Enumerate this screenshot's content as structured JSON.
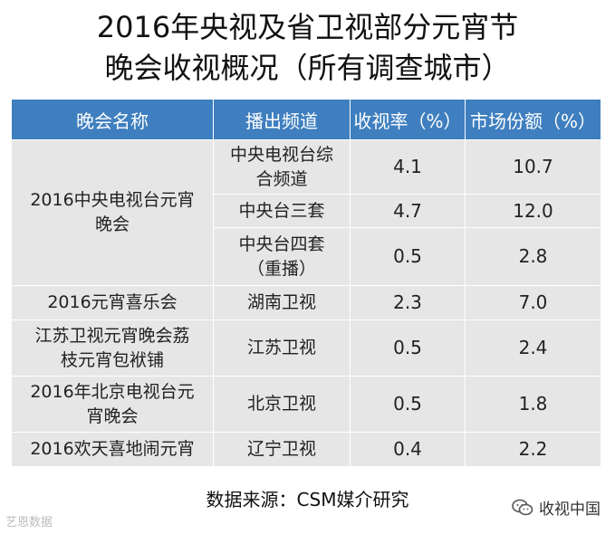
{
  "title": {
    "line1": "2016年央视及省卫视部分元宵节",
    "line2": "晚会收视概况（所有调查城市）"
  },
  "chart_data": {
    "type": "table",
    "columns": [
      "晚会名称",
      "播出频道",
      "收视率（%）",
      "市场份额（%）"
    ],
    "rows": [
      {
        "program": "2016中央电视台元宵晚会",
        "channel": "中央电视台综合频道",
        "rating": "4.1",
        "share": "10.7"
      },
      {
        "program": "2016中央电视台元宵晚会",
        "channel": "中央台三套",
        "rating": "4.7",
        "share": "12.0"
      },
      {
        "program": "2016中央电视台元宵晚会",
        "channel": "中央台四套（重播）",
        "rating": "0.5",
        "share": "2.8"
      },
      {
        "program": "2016元宵喜乐会",
        "channel": "湖南卫视",
        "rating": "2.3",
        "share": "7.0"
      },
      {
        "program": "江苏卫视元宵晚会荔枝元宵包袱铺",
        "channel": "江苏卫视",
        "rating": "0.5",
        "share": "2.4"
      },
      {
        "program": "2016年北京电视台元宵晚会",
        "channel": "北京卫视",
        "rating": "0.5",
        "share": "1.8"
      },
      {
        "program": "2016欢天喜地闹元宵",
        "channel": "辽宁卫视",
        "rating": "0.4",
        "share": "2.2"
      }
    ]
  },
  "table_view": {
    "header": [
      "晚会名称",
      "播出频道",
      "收视率（%）",
      "市场份额（%）"
    ],
    "cctv_program_l1": "2016中央电视台元宵",
    "cctv_program_l2": "晚会",
    "cctv1_l1": "中央电视台综",
    "cctv1_l2": "合频道",
    "cctv3": "中央台三套",
    "cctv4_l1": "中央台四套",
    "cctv4_l2": "（重播）",
    "hunan_program": "2016元宵喜乐会",
    "hunan_channel": "湖南卫视",
    "jiangsu_program_l1": "江苏卫视元宵晚会荔",
    "jiangsu_program_l2": "枝元宵包袱铺",
    "jiangsu_channel": "江苏卫视",
    "beijing_program_l1": "2016年北京电视台元",
    "beijing_program_l2": "宵晚会",
    "beijing_channel": "北京卫视",
    "liaoning_program": "2016欢天喜地闹元宵",
    "liaoning_channel": "辽宁卫视"
  },
  "source": "数据来源：CSM媒介研究",
  "watermark_left": "艺恩数据",
  "watermark_right": "收视中国",
  "colors": {
    "header_bg": "#3f7fbf",
    "cell_bg": "#e6e6e6"
  }
}
